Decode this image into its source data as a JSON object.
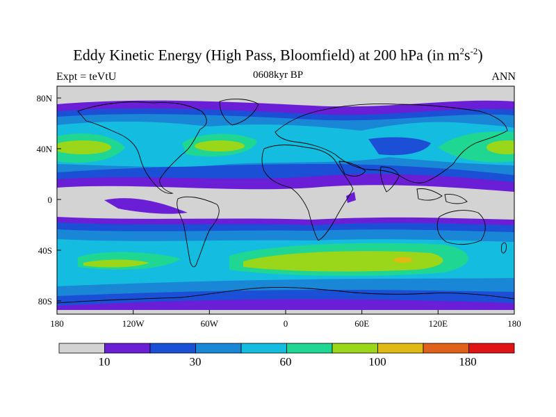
{
  "title": {
    "main": "Eddy Kinetic Energy (High Pass, Bloomfield) at 200 hPa (in m",
    "sup1": "2",
    "mid": "s",
    "sup2": "-2",
    "close": ")"
  },
  "subtitle": "0608kyr BP",
  "left_label": "Expt = teVtU",
  "right_label": "ANN",
  "map": {
    "projection": "cylindrical equidistant",
    "lon_range": [
      -180,
      180
    ],
    "lat_range": [
      -90,
      90
    ],
    "x_ticks": [
      "180",
      "120W",
      "60W",
      "0",
      "60E",
      "120E",
      "180"
    ],
    "y_ticks": [
      "80N",
      "40N",
      "0",
      "40S",
      "80S"
    ]
  },
  "colorbar": {
    "colors": [
      "#d3d3d3",
      "#6a1fd6",
      "#1b4fd6",
      "#1a86d6",
      "#14bde0",
      "#1fd692",
      "#9ad61a",
      "#e0b914",
      "#e0621a",
      "#e01414"
    ],
    "labels": [
      "10",
      "30",
      "60",
      "100",
      "180"
    ]
  }
}
